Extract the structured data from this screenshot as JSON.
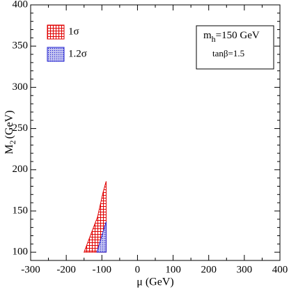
{
  "chart_data": {
    "type": "polygon",
    "x_label": "μ (GeV)",
    "y_label": {
      "main": "M",
      "sub": "2",
      "unit": "(GeV)"
    },
    "xlim": [
      -300,
      400
    ],
    "xticks": [
      -300,
      -200,
      -100,
      0,
      100,
      200,
      300,
      400
    ],
    "ylim": [
      90,
      400
    ],
    "yticks": [
      100,
      150,
      200,
      250,
      300,
      350,
      400
    ],
    "series": [
      {
        "name": "1σ",
        "color": "#e00000",
        "pattern": "grid",
        "x": [
          -150,
          -128,
          -112,
          -97,
          -88,
          -88
        ],
        "values": [
          100,
          125,
          143,
          172,
          186,
          100
        ]
      },
      {
        "name": "1.2σ",
        "color": "#2020d0",
        "pattern": "dots",
        "x": [
          -114,
          -88,
          -88
        ],
        "values": [
          100,
          100,
          137
        ]
      }
    ],
    "legend": "upper left",
    "annotation": {
      "line1": {
        "main": "m",
        "sub": "h",
        "rest": "=150 GeV"
      },
      "line2": "tanβ=1.5"
    }
  }
}
